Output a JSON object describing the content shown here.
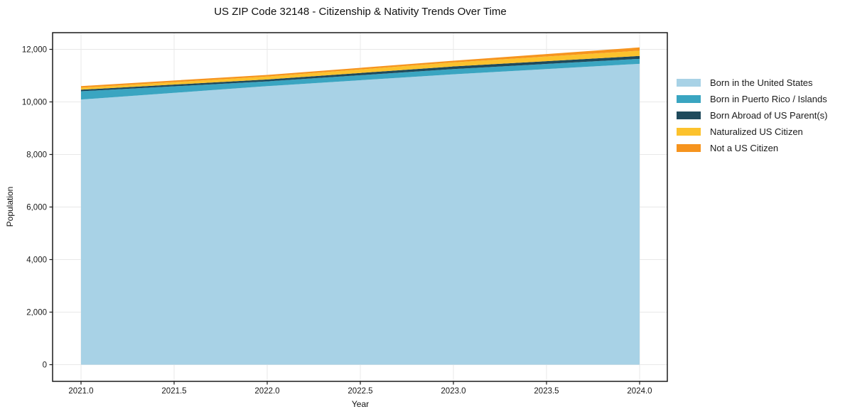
{
  "title": "US ZIP Code 32148 - Citizenship & Nativity Trends Over Time",
  "chart_data": {
    "type": "area",
    "stacked": true,
    "title": "US ZIP Code 32148 - Citizenship & Nativity Trends Over Time",
    "xlabel": "Year",
    "ylabel": "Population",
    "x": [
      2021,
      2022,
      2023,
      2024
    ],
    "x_ticks": [
      2021.0,
      2021.5,
      2022.0,
      2022.5,
      2023.0,
      2023.5,
      2024.0
    ],
    "x_tick_labels": [
      "2021.0",
      "2021.5",
      "2022.0",
      "2022.5",
      "2023.0",
      "2023.5",
      "2024.0"
    ],
    "y_ticks": [
      0,
      2000,
      4000,
      6000,
      8000,
      10000,
      12000
    ],
    "y_tick_labels": [
      "0",
      "2,000",
      "4,000",
      "6,000",
      "8,000",
      "10,000",
      "12,000"
    ],
    "xlim": [
      2020.85,
      2024.15
    ],
    "ylim": [
      -635,
      12635
    ],
    "grid": true,
    "grid_color": "#e8e8e8",
    "legend_position": "right-outside-top",
    "series": [
      {
        "name": "Born in the United States",
        "color": "#a8d2e6",
        "values": [
          10090,
          10600,
          11050,
          11450
        ]
      },
      {
        "name": "Born in Puerto Rico / Islands",
        "color": "#3aa5c1",
        "values": [
          315,
          180,
          200,
          190
        ]
      },
      {
        "name": "Born Abroad of US Parent(s)",
        "color": "#1f4a5c",
        "values": [
          60,
          75,
          100,
          110
        ]
      },
      {
        "name": "Naturalized US Citizen",
        "color": "#fcc22d",
        "values": [
          75,
          110,
          155,
          200
        ]
      },
      {
        "name": "Not a US Citizen",
        "color": "#f6941e",
        "values": [
          62,
          63,
          63,
          125
        ]
      }
    ],
    "totals_by_year": [
      10602,
      11028,
      11568,
      12075
    ]
  }
}
